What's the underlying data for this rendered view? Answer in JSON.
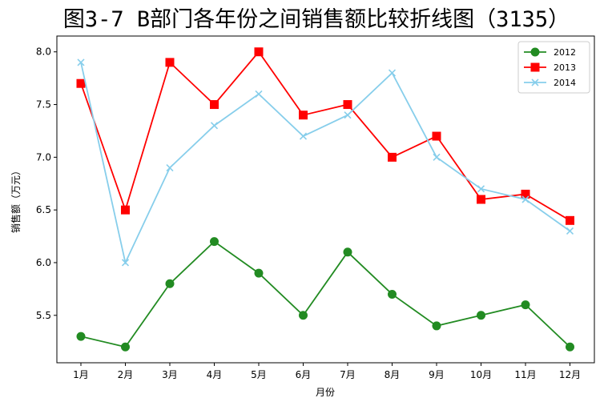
{
  "chart_data": {
    "type": "line",
    "title": "图3-7 B部门各年份之间销售额比较折线图（3135）",
    "xlabel": "月份",
    "ylabel": "销售额（万元）",
    "categories": [
      "1月",
      "2月",
      "3月",
      "4月",
      "5月",
      "6月",
      "7月",
      "8月",
      "9月",
      "10月",
      "11月",
      "12月"
    ],
    "ylim": [
      5.05,
      8.15
    ],
    "yticks": [
      5.5,
      6.0,
      6.5,
      7.0,
      7.5,
      8.0
    ],
    "ytick_labels": [
      "5.5",
      "6.0",
      "6.5",
      "7.0",
      "7.5",
      "8.0"
    ],
    "grid": false,
    "legend_position": "top-right",
    "series": [
      {
        "name": "2012",
        "color": "#228B22",
        "marker": "circle",
        "values": [
          5.3,
          5.2,
          5.8,
          6.2,
          5.9,
          5.5,
          6.1,
          5.7,
          5.4,
          5.5,
          5.6,
          5.2
        ]
      },
      {
        "name": "2013",
        "color": "#FF0000",
        "marker": "square",
        "values": [
          7.7,
          6.5,
          7.9,
          7.5,
          8.0,
          7.4,
          7.5,
          7.0,
          7.2,
          6.6,
          6.65,
          6.4
        ]
      },
      {
        "name": "2014",
        "color": "#87CEEB",
        "marker": "x",
        "values": [
          7.9,
          6.0,
          6.9,
          7.3,
          7.6,
          7.2,
          7.4,
          7.8,
          7.0,
          6.7,
          6.6,
          6.3
        ]
      }
    ]
  }
}
